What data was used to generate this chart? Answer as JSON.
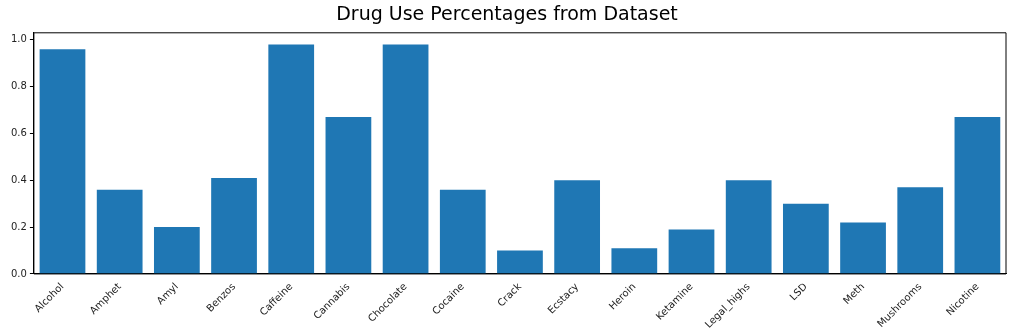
{
  "chart_data": {
    "type": "bar",
    "title": "Drug Use Percentages from Dataset",
    "categories": [
      "Alcohol",
      "Amphet",
      "Amyl",
      "Benzos",
      "Caffeine",
      "Cannabis",
      "Chocolate",
      "Cocaine",
      "Crack",
      "Ecstacy",
      "Heroin",
      "Ketamine",
      "Legal_highs",
      "LSD",
      "Meth",
      "Mushrooms",
      "Nicotine"
    ],
    "values": [
      0.96,
      0.36,
      0.2,
      0.41,
      0.98,
      0.67,
      0.98,
      0.36,
      0.1,
      0.4,
      0.11,
      0.19,
      0.4,
      0.3,
      0.22,
      0.37,
      0.67
    ],
    "color": "#1f77b4",
    "ylim": [
      0,
      1.03
    ],
    "yticks": [
      {
        "value": 0,
        "label": "0.0"
      },
      {
        "value": 0.2,
        "label": "0.2"
      },
      {
        "value": 0.4,
        "label": "0.4"
      },
      {
        "value": 0.6,
        "label": "0.6"
      },
      {
        "value": 0.8,
        "label": "0.8"
      },
      {
        "value": 1,
        "label": "1.0"
      }
    ],
    "grid": false,
    "legend": false
  }
}
